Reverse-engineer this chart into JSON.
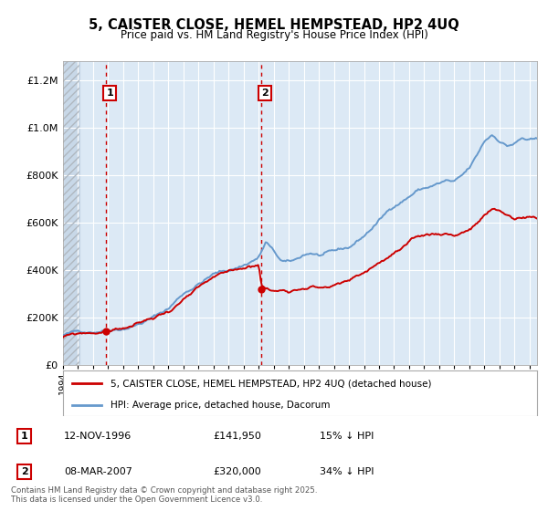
{
  "title": "5, CAISTER CLOSE, HEMEL HEMPSTEAD, HP2 4UQ",
  "subtitle": "Price paid vs. HM Land Registry's House Price Index (HPI)",
  "legend_label_red": "5, CAISTER CLOSE, HEMEL HEMPSTEAD, HP2 4UQ (detached house)",
  "legend_label_blue": "HPI: Average price, detached house, Dacorum",
  "annotation1_date": "12-NOV-1996",
  "annotation1_price": "£141,950",
  "annotation1_hpi": "15% ↓ HPI",
  "annotation2_date": "08-MAR-2007",
  "annotation2_price": "£320,000",
  "annotation2_hpi": "34% ↓ HPI",
  "footer": "Contains HM Land Registry data © Crown copyright and database right 2025.\nThis data is licensed under the Open Government Licence v3.0.",
  "xlim": [
    1994.0,
    2025.5
  ],
  "ylim": [
    0,
    1280000
  ],
  "background_color": "#ffffff",
  "plot_background_color": "#dce9f5",
  "grid_color": "#ffffff",
  "red_color": "#cc0000",
  "blue_color": "#6699cc",
  "vline1_x": 1996.87,
  "vline2_x": 2007.18,
  "marker1_x": 1996.87,
  "marker1_y": 141950,
  "marker2_x": 2007.18,
  "marker2_y": 320000
}
